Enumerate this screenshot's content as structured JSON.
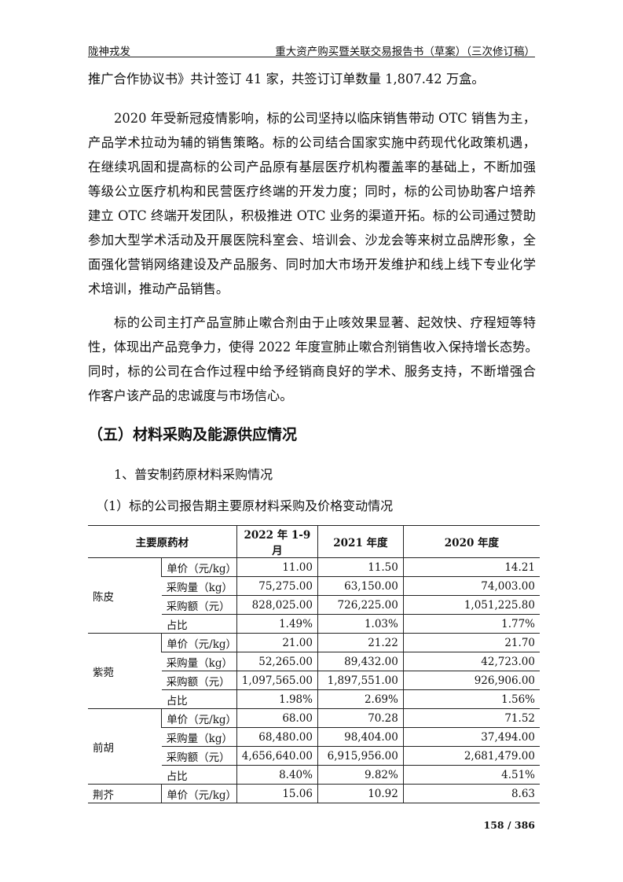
{
  "header": {
    "left": "陇神戎发",
    "right": "重大资产购买暨关联交易报告书（草案）（三次修订稿）"
  },
  "para1": [
    "推广合作协议书》共计签订 41 家，共签订订单数量 1,807.42 万盒。"
  ],
  "para2": [
    "2020 年受新冠疫情影响，标的公司坚持以临床销售带动 OTC 销售为主，",
    "产品学术拉动为辅的销售策略。标的公司结合国家实施中药现代化政策机遇，",
    "在继续巩固和提高标的公司产品原有基层医疗机构覆盖率的基础上，不断加强",
    "等级公立医疗机构和民营医疗终端的开发力度；同时，标的公司协助客户培养",
    "建立 OTC 终端开发团队，积极推进 OTC 业务的渠道开拓。标的公司通过赞助",
    "参加大型学术活动及开展医院科室会、培训会、沙龙会等来树立品牌形象，全",
    "面强化营销网络建设及产品服务、同时加大市场开发维护和线上线下专业化学",
    "术培训，推动产品销售。"
  ],
  "para3": [
    "标的公司主打产品宣肺止嗽合剂由于止咳效果显著、起效快、疗程短等特",
    "性，体现出产品竞争力，使得 2022 年度宣肺止嗽合剂销售收入保持增长态势。",
    "同时，标的公司在合作过程中给予经销商良好的学术、服务支持，不断增强合",
    "作客户该产品的忠诚度与市场信心。"
  ],
  "heading": "（五）材料采购及能源供应情况",
  "sub1": "1、普安制药原材料采购情况",
  "sub2": "（1）标的公司报告期主要原材料采购及价格变动情况",
  "table": {
    "headers": [
      "主要原药材",
      "2022 年 1-9 月",
      "2021 年度",
      "2020 年度"
    ],
    "groups": [
      {
        "name": "陈皮",
        "rows": [
          [
            "单价（元/kg）",
            "11.00",
            "11.50",
            "14.21"
          ],
          [
            "采购量（kg）",
            "75,275.00",
            "63,150.00",
            "74,003.00"
          ],
          [
            "采购额（元）",
            "828,025.00",
            "726,225.00",
            "1,051,225.80"
          ],
          [
            "占比",
            "1.49%",
            "1.03%",
            "1.77%"
          ]
        ]
      },
      {
        "name": "紫菀",
        "rows": [
          [
            "单价（元/kg）",
            "21.00",
            "21.22",
            "21.70"
          ],
          [
            "采购量（kg）",
            "52,265.00",
            "89,432.00",
            "42,723.00"
          ],
          [
            "采购额（元）",
            "1,097,565.00",
            "1,897,551.00",
            "926,906.00"
          ],
          [
            "占比",
            "1.98%",
            "2.69%",
            "1.56%"
          ]
        ]
      },
      {
        "name": "前胡",
        "rows": [
          [
            "单价（元/kg）",
            "68.00",
            "70.28",
            "71.52"
          ],
          [
            "采购量（kg）",
            "68,480.00",
            "98,404.00",
            "37,494.00"
          ],
          [
            "采购额（元）",
            "4,656,640.00",
            "6,915,956.00",
            "2,681,479.00"
          ],
          [
            "占比",
            "8.40%",
            "9.82%",
            "4.51%"
          ]
        ]
      },
      {
        "name": "荆芥",
        "rows": [
          [
            "单价（元/kg）",
            "15.06",
            "10.92",
            "8.63"
          ]
        ]
      }
    ]
  },
  "page_number": "158 / 386"
}
